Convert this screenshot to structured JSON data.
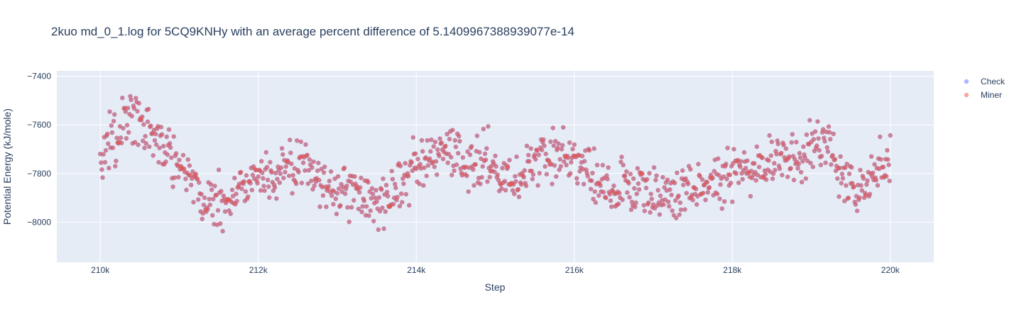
{
  "chart_data": {
    "type": "scatter",
    "title": "2kuo md_0_1.log for 5CQ9KNHy with an average percent difference of 5.1409967388939077e-14",
    "xlabel": "Step",
    "ylabel": "Potential Energy (kJ/mole)",
    "xlim": [
      209450,
      220550
    ],
    "ylim": [
      -8165,
      -7378
    ],
    "x_ticks": [
      {
        "value": 210000,
        "label": "210k"
      },
      {
        "value": 212000,
        "label": "212k"
      },
      {
        "value": 214000,
        "label": "214k"
      },
      {
        "value": 216000,
        "label": "216k"
      },
      {
        "value": 218000,
        "label": "218k"
      },
      {
        "value": 220000,
        "label": "220k"
      }
    ],
    "y_ticks": [
      {
        "value": -7400,
        "label": "−7400"
      },
      {
        "value": -7600,
        "label": "−7600"
      },
      {
        "value": -7800,
        "label": "−7800"
      },
      {
        "value": -8000,
        "label": "−8000"
      }
    ],
    "grid": true,
    "legend_position": "top-right",
    "x_step": 10,
    "x_start": 210000,
    "anchors": [
      [
        210000,
        -7780
      ],
      [
        210100,
        -7650
      ],
      [
        210200,
        -7690
      ],
      [
        210300,
        -7560
      ],
      [
        210400,
        -7560
      ],
      [
        210500,
        -7600
      ],
      [
        210600,
        -7640
      ],
      [
        210700,
        -7660
      ],
      [
        210800,
        -7690
      ],
      [
        210900,
        -7700
      ],
      [
        211000,
        -7760
      ],
      [
        211100,
        -7780
      ],
      [
        211200,
        -7840
      ],
      [
        211300,
        -7920
      ],
      [
        211400,
        -7920
      ],
      [
        211500,
        -7910
      ],
      [
        211600,
        -7920
      ],
      [
        211700,
        -7890
      ],
      [
        211800,
        -7860
      ],
      [
        211900,
        -7800
      ],
      [
        212000,
        -7820
      ],
      [
        212200,
        -7800
      ],
      [
        212400,
        -7770
      ],
      [
        212600,
        -7780
      ],
      [
        212800,
        -7840
      ],
      [
        213000,
        -7860
      ],
      [
        213200,
        -7880
      ],
      [
        213400,
        -7900
      ],
      [
        213600,
        -7920
      ],
      [
        213800,
        -7830
      ],
      [
        214000,
        -7790
      ],
      [
        214200,
        -7740
      ],
      [
        214400,
        -7720
      ],
      [
        214600,
        -7760
      ],
      [
        214800,
        -7730
      ],
      [
        215000,
        -7760
      ],
      [
        215200,
        -7830
      ],
      [
        215400,
        -7800
      ],
      [
        215600,
        -7730
      ],
      [
        215800,
        -7720
      ],
      [
        216000,
        -7740
      ],
      [
        216200,
        -7800
      ],
      [
        216400,
        -7860
      ],
      [
        216600,
        -7840
      ],
      [
        216800,
        -7860
      ],
      [
        217000,
        -7880
      ],
      [
        217200,
        -7900
      ],
      [
        217400,
        -7880
      ],
      [
        217600,
        -7840
      ],
      [
        217800,
        -7820
      ],
      [
        218000,
        -7800
      ],
      [
        218200,
        -7760
      ],
      [
        218400,
        -7750
      ],
      [
        218600,
        -7740
      ],
      [
        218800,
        -7770
      ],
      [
        219000,
        -7680
      ],
      [
        219200,
        -7690
      ],
      [
        219400,
        -7800
      ],
      [
        219600,
        -7850
      ],
      [
        219800,
        -7780
      ],
      [
        220000,
        -7760
      ]
    ],
    "noise_amplitude": 55,
    "series": [
      {
        "name": "Check",
        "color": "#636efa",
        "opacity": 0.5
      },
      {
        "name": "Miner",
        "color": "#ef553b",
        "opacity": 0.5
      }
    ]
  }
}
